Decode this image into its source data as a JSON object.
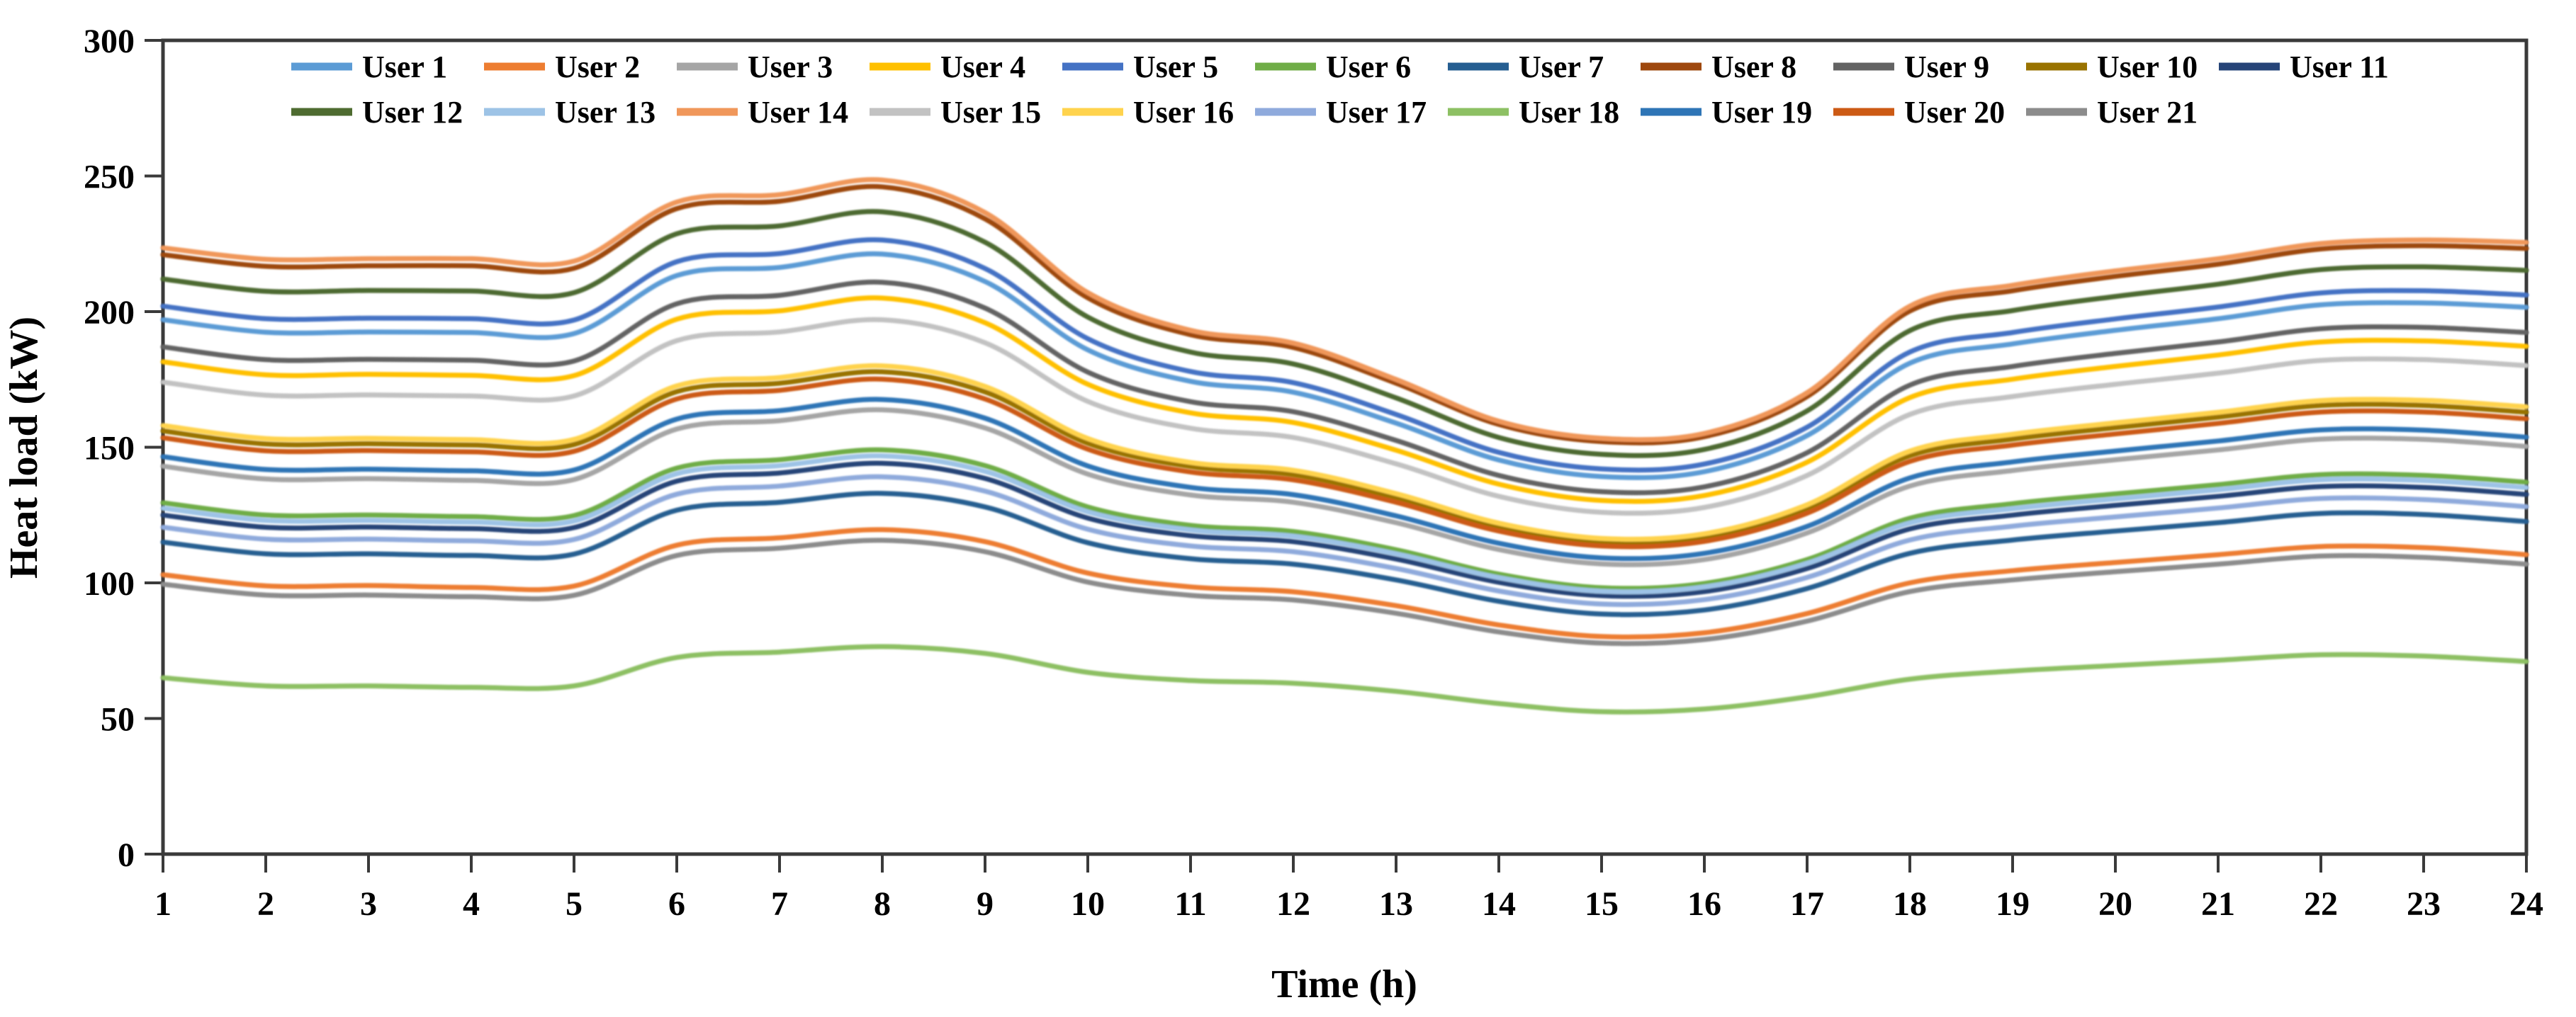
{
  "chart_data": {
    "type": "line",
    "title": "",
    "xlabel": "Time (h)",
    "ylabel": "Heat load (kW)",
    "x": [
      1,
      2,
      3,
      4,
      5,
      6,
      7,
      8,
      9,
      10,
      11,
      12,
      13,
      14,
      15,
      16,
      17,
      18,
      19,
      20,
      21,
      22,
      23,
      24
    ],
    "xlim": [
      1,
      24
    ],
    "ylim": [
      0,
      300
    ],
    "xticks": [
      1,
      2,
      3,
      4,
      5,
      6,
      7,
      8,
      9,
      10,
      11,
      12,
      13,
      14,
      15,
      16,
      17,
      18,
      19,
      20,
      21,
      22,
      23,
      24
    ],
    "yticks": [
      0,
      50,
      100,
      150,
      200,
      250,
      300
    ],
    "grid": false,
    "legend_position": "top-inside",
    "legend_rows": [
      11,
      10
    ],
    "axis_color": "#3a3a3a",
    "background_color": "#ffffff",
    "line_smoothing": true,
    "series": [
      {
        "name": "User 1",
        "color": "#5B9BD5",
        "values": [
          197.0,
          192.4,
          192.5,
          192.3,
          191.9,
          213.3,
          216.3,
          221.2,
          211.1,
          185.9,
          174.3,
          170.3,
          158.9,
          145.3,
          139.2,
          141.0,
          154.3,
          181.0,
          188.1,
          193.1,
          197.4,
          202.5,
          203.2,
          201.6
        ]
      },
      {
        "name": "User 2",
        "color": "#ED7D31",
        "values": [
          103.0,
          98.9,
          99.0,
          98.3,
          98.8,
          113.9,
          116.6,
          119.6,
          115.2,
          103.6,
          98.5,
          96.7,
          91.6,
          84.5,
          80.2,
          81.6,
          88.7,
          100.0,
          104.5,
          107.5,
          110.4,
          113.4,
          113.0,
          110.4
        ]
      },
      {
        "name": "User 3",
        "color": "#A5A5A5",
        "values": [
          143.0,
          138.3,
          138.4,
          137.8,
          138.1,
          156.7,
          159.8,
          163.8,
          157.1,
          140.1,
          132.4,
          129.7,
          122.2,
          112.3,
          107.0,
          108.6,
          118.4,
          135.7,
          141.4,
          145.4,
          149.0,
          153.0,
          152.9,
          150.3
        ]
      },
      {
        "name": "User 4",
        "color": "#FFC000",
        "values": [
          181.5,
          176.7,
          176.9,
          176.5,
          176.4,
          197.2,
          200.3,
          205.0,
          195.9,
          173.2,
          162.7,
          159.1,
          148.9,
          136.4,
          130.4,
          132.2,
          144.5,
          168.3,
          175.1,
          179.8,
          184.0,
          188.8,
          189.2,
          187.2
        ]
      },
      {
        "name": "User 5",
        "color": "#4472C4",
        "values": [
          202.0,
          197.4,
          197.6,
          197.4,
          196.9,
          218.4,
          221.4,
          226.4,
          215.9,
          190.0,
          177.9,
          173.8,
          162.1,
          148.1,
          142.0,
          143.8,
          157.4,
          185.1,
          192.3,
          197.3,
          201.7,
          206.9,
          207.7,
          206.1
        ]
      },
      {
        "name": "User 6",
        "color": "#70AD47",
        "values": [
          129.5,
          125.0,
          125.0,
          124.4,
          124.8,
          142.3,
          145.4,
          149.0,
          143.2,
          128.0,
          121.2,
          118.9,
          112.2,
          103.2,
          98.2,
          99.8,
          108.6,
          123.8,
          129.2,
          132.8,
          136.2,
          139.9,
          139.6,
          137.1
        ]
      },
      {
        "name": "User 7",
        "color": "#255E91",
        "values": [
          115.0,
          110.7,
          110.7,
          110.1,
          110.6,
          126.8,
          129.7,
          133.0,
          128.0,
          114.8,
          108.9,
          106.9,
          101.1,
          93.2,
          88.5,
          90.0,
          97.9,
          110.9,
          115.8,
          119.1,
          122.2,
          125.6,
          125.2,
          122.6
        ]
      },
      {
        "name": "User 8",
        "color": "#9E480E",
        "values": [
          221.0,
          216.7,
          216.9,
          216.9,
          216.0,
          238.0,
          240.7,
          246.0,
          234.2,
          205.1,
          191.5,
          186.8,
          173.6,
          158.4,
          152.1,
          153.9,
          168.7,
          200.2,
          207.7,
          213.0,
          217.5,
          223.1,
          224.3,
          223.3
        ]
      },
      {
        "name": "User 9",
        "color": "#636363",
        "values": [
          187.0,
          182.3,
          182.4,
          182.1,
          181.8,
          202.9,
          206.0,
          210.8,
          201.3,
          177.7,
          166.8,
          163.1,
          152.5,
          139.6,
          133.6,
          135.4,
          148.0,
          172.9,
          179.8,
          184.6,
          188.8,
          193.7,
          194.2,
          192.3
        ]
      },
      {
        "name": "User 10",
        "color": "#997300",
        "values": [
          156.0,
          151.2,
          151.3,
          150.8,
          151.0,
          170.5,
          173.6,
          177.8,
          170.4,
          151.5,
          142.9,
          139.9,
          131.5,
          120.7,
          115.2,
          116.9,
          127.5,
          146.9,
          153.0,
          157.2,
          161.1,
          165.4,
          165.4,
          162.9
        ]
      },
      {
        "name": "User 11",
        "color": "#264478",
        "values": [
          125.0,
          120.5,
          120.6,
          120.0,
          120.4,
          137.5,
          140.5,
          144.1,
          138.5,
          123.9,
          117.4,
          115.2,
          108.8,
          100.2,
          95.3,
          96.8,
          105.3,
          119.9,
          125.0,
          128.6,
          131.9,
          135.5,
          135.2,
          132.6
        ]
      },
      {
        "name": "User 12",
        "color": "#4E6B30",
        "values": [
          212.0,
          207.5,
          207.8,
          207.6,
          207.0,
          228.7,
          231.6,
          236.8,
          225.6,
          198.0,
          185.1,
          180.7,
          168.2,
          153.6,
          147.4,
          149.2,
          163.4,
          193.0,
          200.4,
          205.6,
          210.1,
          215.5,
          216.5,
          215.2
        ]
      },
      {
        "name": "User 13",
        "color": "#9DC3E6",
        "values": [
          127.5,
          123.0,
          123.0,
          122.4,
          122.8,
          140.2,
          143.2,
          146.8,
          141.1,
          126.2,
          119.5,
          117.2,
          110.7,
          101.9,
          96.9,
          98.5,
          107.2,
          122.1,
          127.3,
          130.9,
          134.3,
          138.0,
          137.7,
          135.1
        ]
      },
      {
        "name": "User 14",
        "color": "#F0975A",
        "values": [
          223.5,
          219.3,
          219.5,
          219.5,
          218.6,
          240.4,
          243.1,
          248.5,
          236.5,
          207.0,
          193.1,
          188.4,
          175.0,
          159.6,
          153.3,
          155.1,
          170.1,
          202.0,
          209.7,
          215.0,
          219.5,
          225.1,
          226.4,
          225.5
        ]
      },
      {
        "name": "User 15",
        "color": "#C2C2C2",
        "values": [
          174.0,
          169.2,
          169.3,
          168.9,
          168.9,
          189.3,
          192.5,
          197.0,
          188.5,
          166.9,
          157.0,
          153.6,
          143.9,
          131.9,
          126.0,
          127.8,
          139.6,
          162.1,
          168.7,
          173.2,
          177.3,
          182.0,
          182.3,
          180.1
        ]
      },
      {
        "name": "User 16",
        "color": "#FFD34D",
        "values": [
          158.0,
          153.2,
          153.3,
          152.8,
          152.9,
          172.6,
          175.7,
          180.0,
          172.4,
          153.2,
          144.4,
          141.5,
          132.9,
          122.0,
          116.4,
          118.1,
          128.8,
          148.6,
          154.8,
          159.0,
          162.9,
          167.2,
          167.3,
          164.9
        ]
      },
      {
        "name": "User 17",
        "color": "#8FAADC",
        "values": [
          120.5,
          116.1,
          116.1,
          115.5,
          116.0,
          132.7,
          135.7,
          139.1,
          133.8,
          119.8,
          113.6,
          111.5,
          105.3,
          97.0,
          92.2,
          93.8,
          102.0,
          115.8,
          120.9,
          124.3,
          127.6,
          131.1,
          130.7,
          128.1
        ]
      },
      {
        "name": "User 18",
        "color": "#8DC063",
        "values": [
          65.0,
          62.0,
          62.0,
          61.5,
          62.0,
          72.5,
          74.5,
          76.5,
          74.0,
          67.0,
          64.0,
          63.0,
          60.0,
          55.5,
          52.5,
          53.5,
          58.0,
          64.5,
          67.5,
          69.5,
          71.5,
          73.5,
          73.0,
          71.0
        ]
      },
      {
        "name": "User 19",
        "color": "#2E75B6",
        "values": [
          146.5,
          141.8,
          141.9,
          141.3,
          141.6,
          160.4,
          163.5,
          167.6,
          160.7,
          143.1,
          135.2,
          132.5,
          124.7,
          114.6,
          109.2,
          110.9,
          120.8,
          138.7,
          144.6,
          148.6,
          152.3,
          156.4,
          156.3,
          153.7
        ]
      },
      {
        "name": "User 20",
        "color": "#CC5A14",
        "values": [
          153.5,
          148.7,
          148.8,
          148.3,
          148.5,
          167.8,
          171.0,
          175.1,
          167.8,
          149.3,
          140.9,
          138.0,
          129.7,
          119.1,
          113.6,
          115.3,
          125.7,
          144.8,
          150.8,
          154.9,
          158.8,
          163.0,
          163.0,
          160.5
        ]
      },
      {
        "name": "User 21",
        "color": "#8C8C8C",
        "values": [
          99.5,
          95.5,
          95.5,
          94.9,
          95.4,
          110.1,
          112.8,
          115.7,
          111.5,
          100.3,
          95.4,
          93.7,
          88.8,
          81.9,
          77.8,
          79.1,
          85.9,
          96.8,
          101.1,
          104.1,
          106.9,
          109.9,
          109.4,
          106.9
        ]
      }
    ]
  }
}
